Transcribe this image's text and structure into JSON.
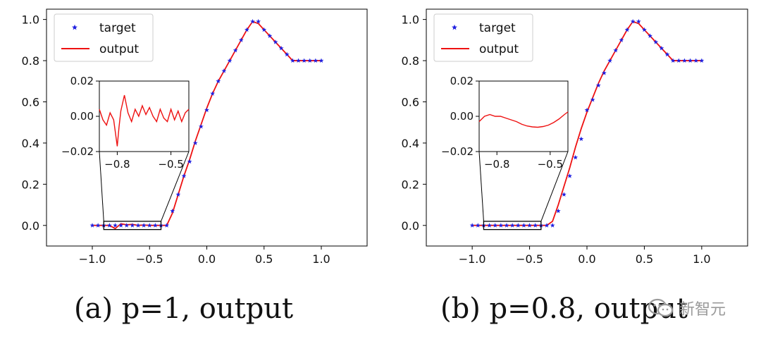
{
  "chart_data": [
    {
      "type": "line",
      "panel": "a",
      "caption": "(a) p=1, output",
      "xlim": [
        -1.4,
        1.4
      ],
      "ylim": [
        -0.1,
        1.05
      ],
      "xticks": [
        "−1.0",
        "−0.5",
        "0.0",
        "0.5",
        "1.0"
      ],
      "xtick_values": [
        -1.0,
        -0.5,
        0.0,
        0.5,
        1.0
      ],
      "yticks": [
        "0.0",
        "0.2",
        "0.4",
        "0.6",
        "0.8",
        "1.0"
      ],
      "ytick_values": [
        0.0,
        0.2,
        0.4,
        0.6,
        0.8,
        1.0
      ],
      "legend": {
        "location": "upper-left",
        "entries": [
          "target",
          "output"
        ]
      },
      "series": [
        {
          "name": "target",
          "style": "star-markers",
          "color": "#1f1fe0",
          "x": [
            -1.0,
            -0.95,
            -0.9,
            -0.85,
            -0.8,
            -0.75,
            -0.7,
            -0.65,
            -0.6,
            -0.55,
            -0.5,
            -0.45,
            -0.4,
            -0.35,
            -0.3,
            -0.25,
            -0.2,
            -0.15,
            -0.1,
            -0.05,
            0.0,
            0.05,
            0.1,
            0.15,
            0.2,
            0.25,
            0.3,
            0.35,
            0.4,
            0.45,
            0.5,
            0.55,
            0.6,
            0.65,
            0.7,
            0.75,
            0.8,
            0.85,
            0.9,
            0.95,
            1.0
          ],
          "y": [
            0,
            0,
            0,
            0,
            0,
            0,
            0,
            0,
            0,
            0,
            0,
            0,
            0,
            0,
            0.07,
            0.15,
            0.24,
            0.31,
            0.4,
            0.48,
            0.56,
            0.64,
            0.7,
            0.75,
            0.8,
            0.85,
            0.9,
            0.95,
            0.99,
            0.99,
            0.95,
            0.92,
            0.89,
            0.86,
            0.83,
            0.8,
            0.8,
            0.8,
            0.8,
            0.8,
            0.8
          ]
        },
        {
          "name": "output",
          "style": "line",
          "color": "#ee1111",
          "x": [
            -1.0,
            -0.95,
            -0.9,
            -0.85,
            -0.8,
            -0.75,
            -0.7,
            -0.65,
            -0.6,
            -0.55,
            -0.5,
            -0.45,
            -0.4,
            -0.35,
            -0.3,
            -0.25,
            -0.2,
            -0.15,
            -0.1,
            -0.05,
            0.0,
            0.05,
            0.1,
            0.15,
            0.2,
            0.25,
            0.3,
            0.35,
            0.4,
            0.45,
            0.5,
            0.55,
            0.6,
            0.65,
            0.7,
            0.75,
            0.8,
            0.85,
            0.9,
            0.95,
            1.0
          ],
          "y": [
            0,
            0,
            0,
            0,
            -0.015,
            0.008,
            0.003,
            0.005,
            0,
            0.002,
            0,
            0,
            0,
            0,
            0.06,
            0.15,
            0.24,
            0.32,
            0.41,
            0.49,
            0.57,
            0.64,
            0.7,
            0.75,
            0.8,
            0.85,
            0.9,
            0.95,
            0.99,
            0.98,
            0.95,
            0.92,
            0.89,
            0.86,
            0.83,
            0.8,
            0.8,
            0.8,
            0.8,
            0.8,
            0.8
          ]
        }
      ],
      "zoom_box": {
        "x": [
          -0.9,
          -0.4
        ],
        "y": [
          -0.02,
          0.02
        ]
      },
      "inset": {
        "xlim": [
          -0.9,
          -0.4
        ],
        "ylim": [
          -0.02,
          0.02
        ],
        "xticks": [
          "−0.8",
          "−0.5"
        ],
        "xtick_values": [
          -0.8,
          -0.5
        ],
        "yticks": [
          "0.02",
          "0.00",
          "−0.02"
        ],
        "ytick_values": [
          0.02,
          0.0,
          -0.02
        ],
        "series": {
          "name": "output",
          "color": "#ee1111",
          "x": [
            -0.9,
            -0.88,
            -0.86,
            -0.84,
            -0.82,
            -0.8,
            -0.79,
            -0.78,
            -0.76,
            -0.74,
            -0.72,
            -0.7,
            -0.68,
            -0.66,
            -0.64,
            -0.62,
            -0.6,
            -0.58,
            -0.56,
            -0.54,
            -0.52,
            -0.5,
            -0.48,
            -0.46,
            -0.44,
            -0.42,
            -0.4
          ],
          "y": [
            0.004,
            -0.002,
            -0.005,
            0.002,
            -0.002,
            -0.017,
            -0.006,
            0.003,
            0.012,
            0.002,
            -0.003,
            0.004,
            0.0,
            0.006,
            0.001,
            0.005,
            0.0,
            -0.003,
            0.004,
            -0.001,
            -0.003,
            0.004,
            -0.002,
            0.003,
            -0.003,
            0.002,
            0.004
          ]
        }
      }
    },
    {
      "type": "line",
      "panel": "b",
      "caption": "(b) p=0.8, output",
      "xlim": [
        -1.4,
        1.4
      ],
      "ylim": [
        -0.1,
        1.05
      ],
      "xticks": [
        "−1.0",
        "−0.5",
        "0.0",
        "0.5",
        "1.0"
      ],
      "xtick_values": [
        -1.0,
        -0.5,
        0.0,
        0.5,
        1.0
      ],
      "yticks": [
        "0.0",
        "0.2",
        "0.4",
        "0.6",
        "0.8",
        "1.0"
      ],
      "ytick_values": [
        0.0,
        0.2,
        0.4,
        0.6,
        0.8,
        1.0
      ],
      "legend": {
        "location": "upper-left",
        "entries": [
          "target",
          "output"
        ]
      },
      "series": [
        {
          "name": "target",
          "style": "star-markers",
          "color": "#1f1fe0",
          "x": [
            -1.0,
            -0.95,
            -0.9,
            -0.85,
            -0.8,
            -0.75,
            -0.7,
            -0.65,
            -0.6,
            -0.55,
            -0.5,
            -0.45,
            -0.4,
            -0.35,
            -0.3,
            -0.25,
            -0.2,
            -0.15,
            -0.1,
            -0.05,
            0.0,
            0.05,
            0.1,
            0.15,
            0.2,
            0.25,
            0.3,
            0.35,
            0.4,
            0.45,
            0.5,
            0.55,
            0.6,
            0.65,
            0.7,
            0.75,
            0.8,
            0.85,
            0.9,
            0.95,
            1.0
          ],
          "y": [
            0,
            0,
            0,
            0,
            0,
            0,
            0,
            0,
            0,
            0,
            0,
            0,
            0,
            0,
            0,
            0.07,
            0.15,
            0.24,
            0.33,
            0.42,
            0.56,
            0.61,
            0.68,
            0.74,
            0.8,
            0.85,
            0.9,
            0.95,
            0.99,
            0.99,
            0.95,
            0.92,
            0.89,
            0.86,
            0.83,
            0.8,
            0.8,
            0.8,
            0.8,
            0.8,
            0.8
          ]
        },
        {
          "name": "output",
          "style": "line",
          "color": "#ee1111",
          "x": [
            -1.0,
            -0.95,
            -0.9,
            -0.85,
            -0.8,
            -0.75,
            -0.7,
            -0.65,
            -0.6,
            -0.55,
            -0.5,
            -0.45,
            -0.4,
            -0.35,
            -0.3,
            -0.25,
            -0.2,
            -0.15,
            -0.1,
            -0.05,
            0.0,
            0.05,
            0.1,
            0.15,
            0.2,
            0.25,
            0.3,
            0.35,
            0.4,
            0.45,
            0.5,
            0.55,
            0.6,
            0.65,
            0.7,
            0.75,
            0.8,
            0.85,
            0.9,
            0.95,
            1.0
          ],
          "y": [
            0,
            0,
            0,
            0,
            0,
            0,
            0,
            0,
            0,
            0,
            0,
            0,
            0,
            0,
            0.02,
            0.1,
            0.19,
            0.28,
            0.38,
            0.47,
            0.55,
            0.62,
            0.69,
            0.75,
            0.8,
            0.85,
            0.9,
            0.95,
            0.99,
            0.98,
            0.95,
            0.92,
            0.89,
            0.86,
            0.83,
            0.8,
            0.8,
            0.8,
            0.8,
            0.8,
            0.8
          ]
        }
      ],
      "zoom_box": {
        "x": [
          -0.9,
          -0.4
        ],
        "y": [
          -0.02,
          0.02
        ]
      },
      "inset": {
        "xlim": [
          -0.9,
          -0.4
        ],
        "ylim": [
          -0.02,
          0.02
        ],
        "xticks": [
          "−0.8",
          "−0.5"
        ],
        "xtick_values": [
          -0.8,
          -0.5
        ],
        "yticks": [
          "0.02",
          "0.00",
          "−0.02"
        ],
        "ytick_values": [
          0.02,
          0.0,
          -0.02
        ],
        "series": {
          "name": "output",
          "color": "#ee1111",
          "x": [
            -0.9,
            -0.87,
            -0.84,
            -0.81,
            -0.78,
            -0.75,
            -0.72,
            -0.69,
            -0.66,
            -0.63,
            -0.6,
            -0.57,
            -0.54,
            -0.51,
            -0.48,
            -0.45,
            -0.42,
            -0.4
          ],
          "y": [
            -0.003,
            0.0,
            0.001,
            0.0,
            0.0,
            -0.001,
            -0.002,
            -0.003,
            -0.0045,
            -0.0055,
            -0.006,
            -0.0062,
            -0.0058,
            -0.005,
            -0.0035,
            -0.0015,
            0.001,
            0.0025
          ]
        }
      }
    }
  ],
  "watermark": {
    "text": "新智元"
  }
}
